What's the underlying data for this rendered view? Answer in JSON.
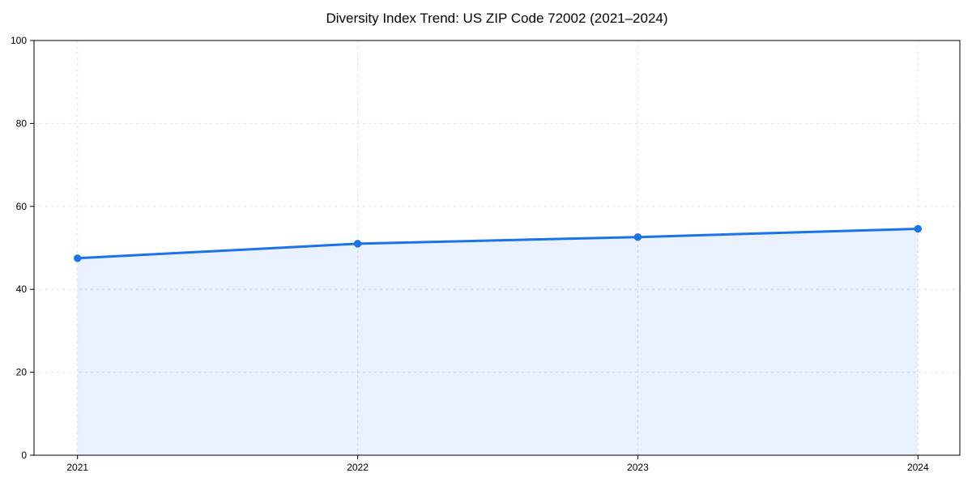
{
  "chart_data": {
    "type": "area",
    "title": "Diversity Index Trend: US ZIP Code 72002 (2021–2024)",
    "x": [
      "2021",
      "2022",
      "2023",
      "2024"
    ],
    "series": [
      {
        "name": "Diversity Index",
        "values": [
          47.5,
          51.0,
          52.6,
          54.6
        ]
      }
    ],
    "xlabel": "",
    "ylabel": "",
    "ylim": [
      0,
      100
    ],
    "yticks": [
      0,
      20,
      40,
      60,
      80,
      100
    ],
    "grid": true,
    "grid_style": "dashed",
    "legend": "none",
    "line_color": "#1a73e8",
    "marker_color": "#1a73e8",
    "fill_color": "rgba(26,115,232,0.10)",
    "grid_color": "#e0e0e0",
    "axis_color": "#000000",
    "tick_label_color": "#000000",
    "background": "#ffffff"
  }
}
